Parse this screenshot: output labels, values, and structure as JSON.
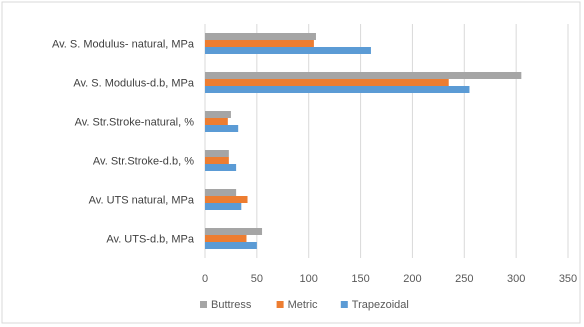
{
  "chart_data": {
    "type": "bar",
    "orientation": "horizontal",
    "categories": [
      "Av. S. Modulus- natural, MPa",
      "Av. S. Modulus-d.b, MPa",
      "Av. Str.Stroke-natural, %",
      "Av. Str.Stroke-d.b, %",
      "Av. UTS natural, MPa",
      "Av. UTS-d.b, MPa"
    ],
    "series": [
      {
        "name": "Buttress",
        "color": "#a5a5a5",
        "values": [
          107,
          305,
          25,
          23,
          30,
          55
        ]
      },
      {
        "name": "Metric",
        "color": "#ed7d31",
        "values": [
          105,
          235,
          22,
          23,
          41,
          40
        ]
      },
      {
        "name": "Trapezoidal",
        "color": "#5b9bd5",
        "values": [
          160,
          255,
          32,
          30,
          35,
          50
        ]
      }
    ],
    "xlim": [
      0,
      350
    ],
    "xticks": [
      "0",
      "50",
      "100",
      "150",
      "200",
      "250",
      "300",
      "350"
    ],
    "xtick_values": [
      0,
      50,
      100,
      150,
      200,
      250,
      300,
      350
    ],
    "grid": true,
    "legend": "bottom",
    "title": "",
    "xlabel": "",
    "ylabel": ""
  }
}
